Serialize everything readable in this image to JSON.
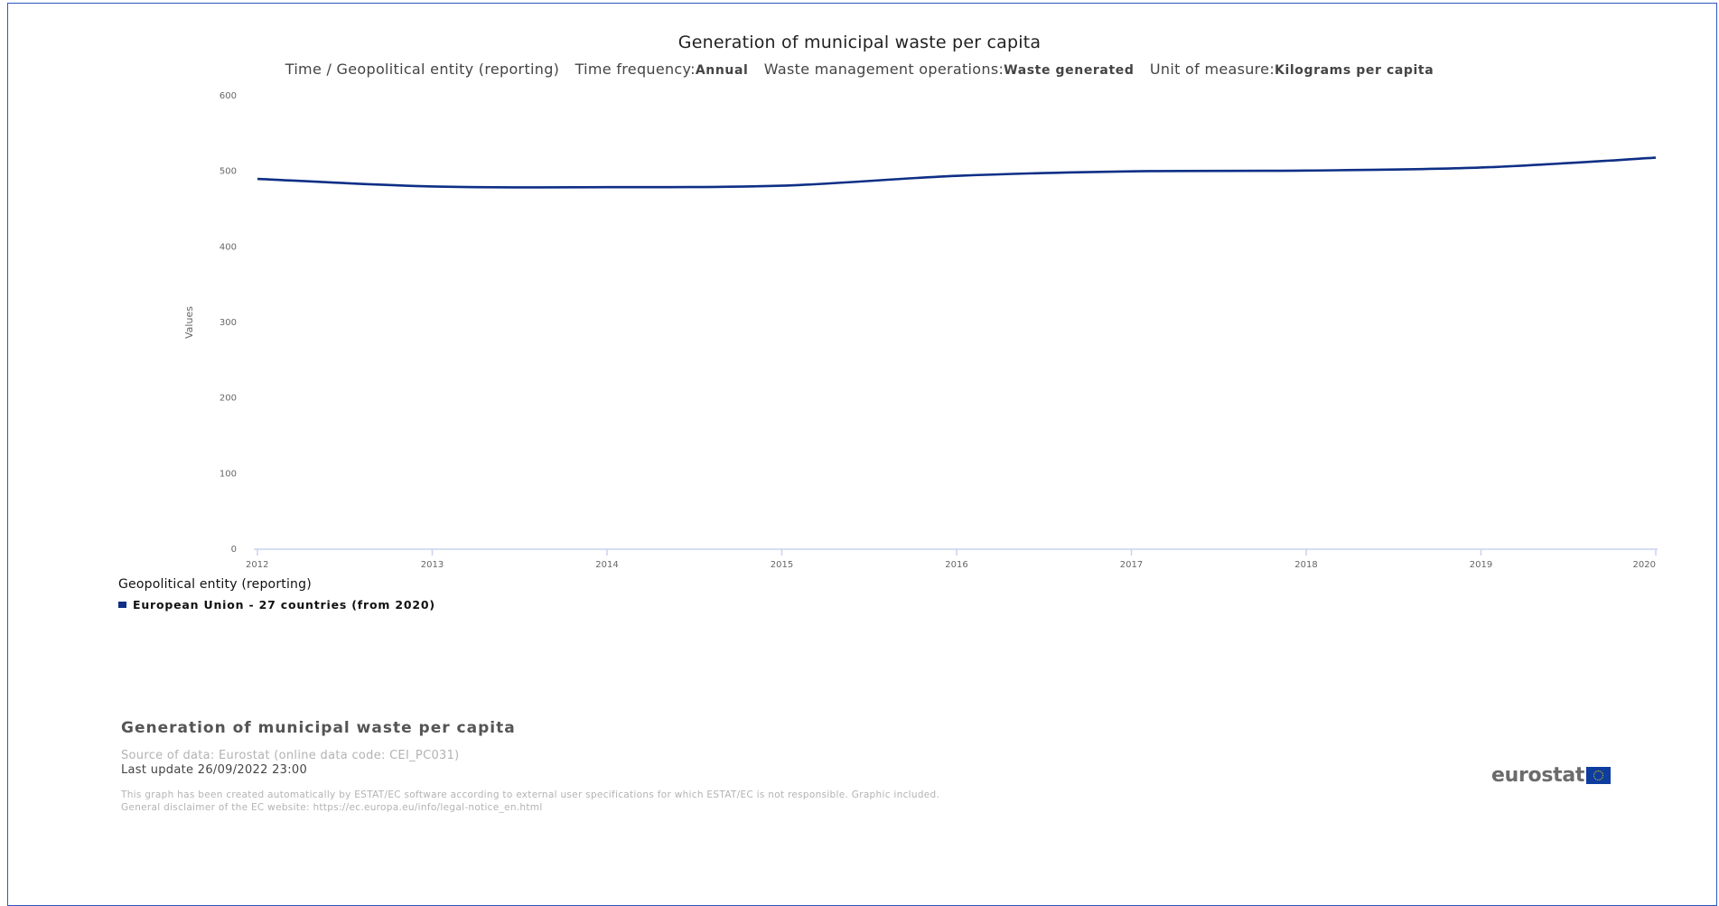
{
  "chart_data": {
    "type": "line",
    "title": "Generation of municipal waste per capita",
    "subtitle": {
      "dimension": "Time / Geopolitical entity (reporting)",
      "filters": [
        {
          "label": "Time frequency:",
          "value": "Annual"
        },
        {
          "label": "Waste management operations:",
          "value": "Waste generated"
        },
        {
          "label": "Unit of measure:",
          "value": "Kilograms per capita"
        }
      ]
    },
    "ylabel": "Values",
    "xlabel": "",
    "ylim": [
      0,
      600
    ],
    "yticks": [
      0,
      100,
      200,
      300,
      400,
      500,
      600
    ],
    "x": [
      "2012",
      "2013",
      "2014",
      "2015",
      "2016",
      "2017",
      "2018",
      "2019",
      "2020"
    ],
    "series": [
      {
        "name": "European Union - 27 countries (from 2020)",
        "color": "#0e2f86",
        "values": [
          490,
          480,
          479,
          481,
          494,
          500,
          501,
          505,
          518
        ]
      }
    ],
    "grid": false,
    "legend": {
      "title": "Geopolitical entity (reporting)",
      "placement": "bottom-left"
    }
  },
  "footer": {
    "title": "Generation of municipal waste per capita",
    "source": "Source of data: Eurostat (online data code: CEI_PC031)",
    "last_update": "Last update 26/09/2022 23:00",
    "disclaimer_1": "This graph has been created automatically by ESTAT/EC software according to external user specifications for which ESTAT/EC is not responsible. Graphic included.",
    "disclaimer_2": "General disclaimer of the EC website: https://ec.europa.eu/info/legal-notice_en.html",
    "logo_text": "eurostat",
    "logo_icon": "eu-flag-icon"
  }
}
